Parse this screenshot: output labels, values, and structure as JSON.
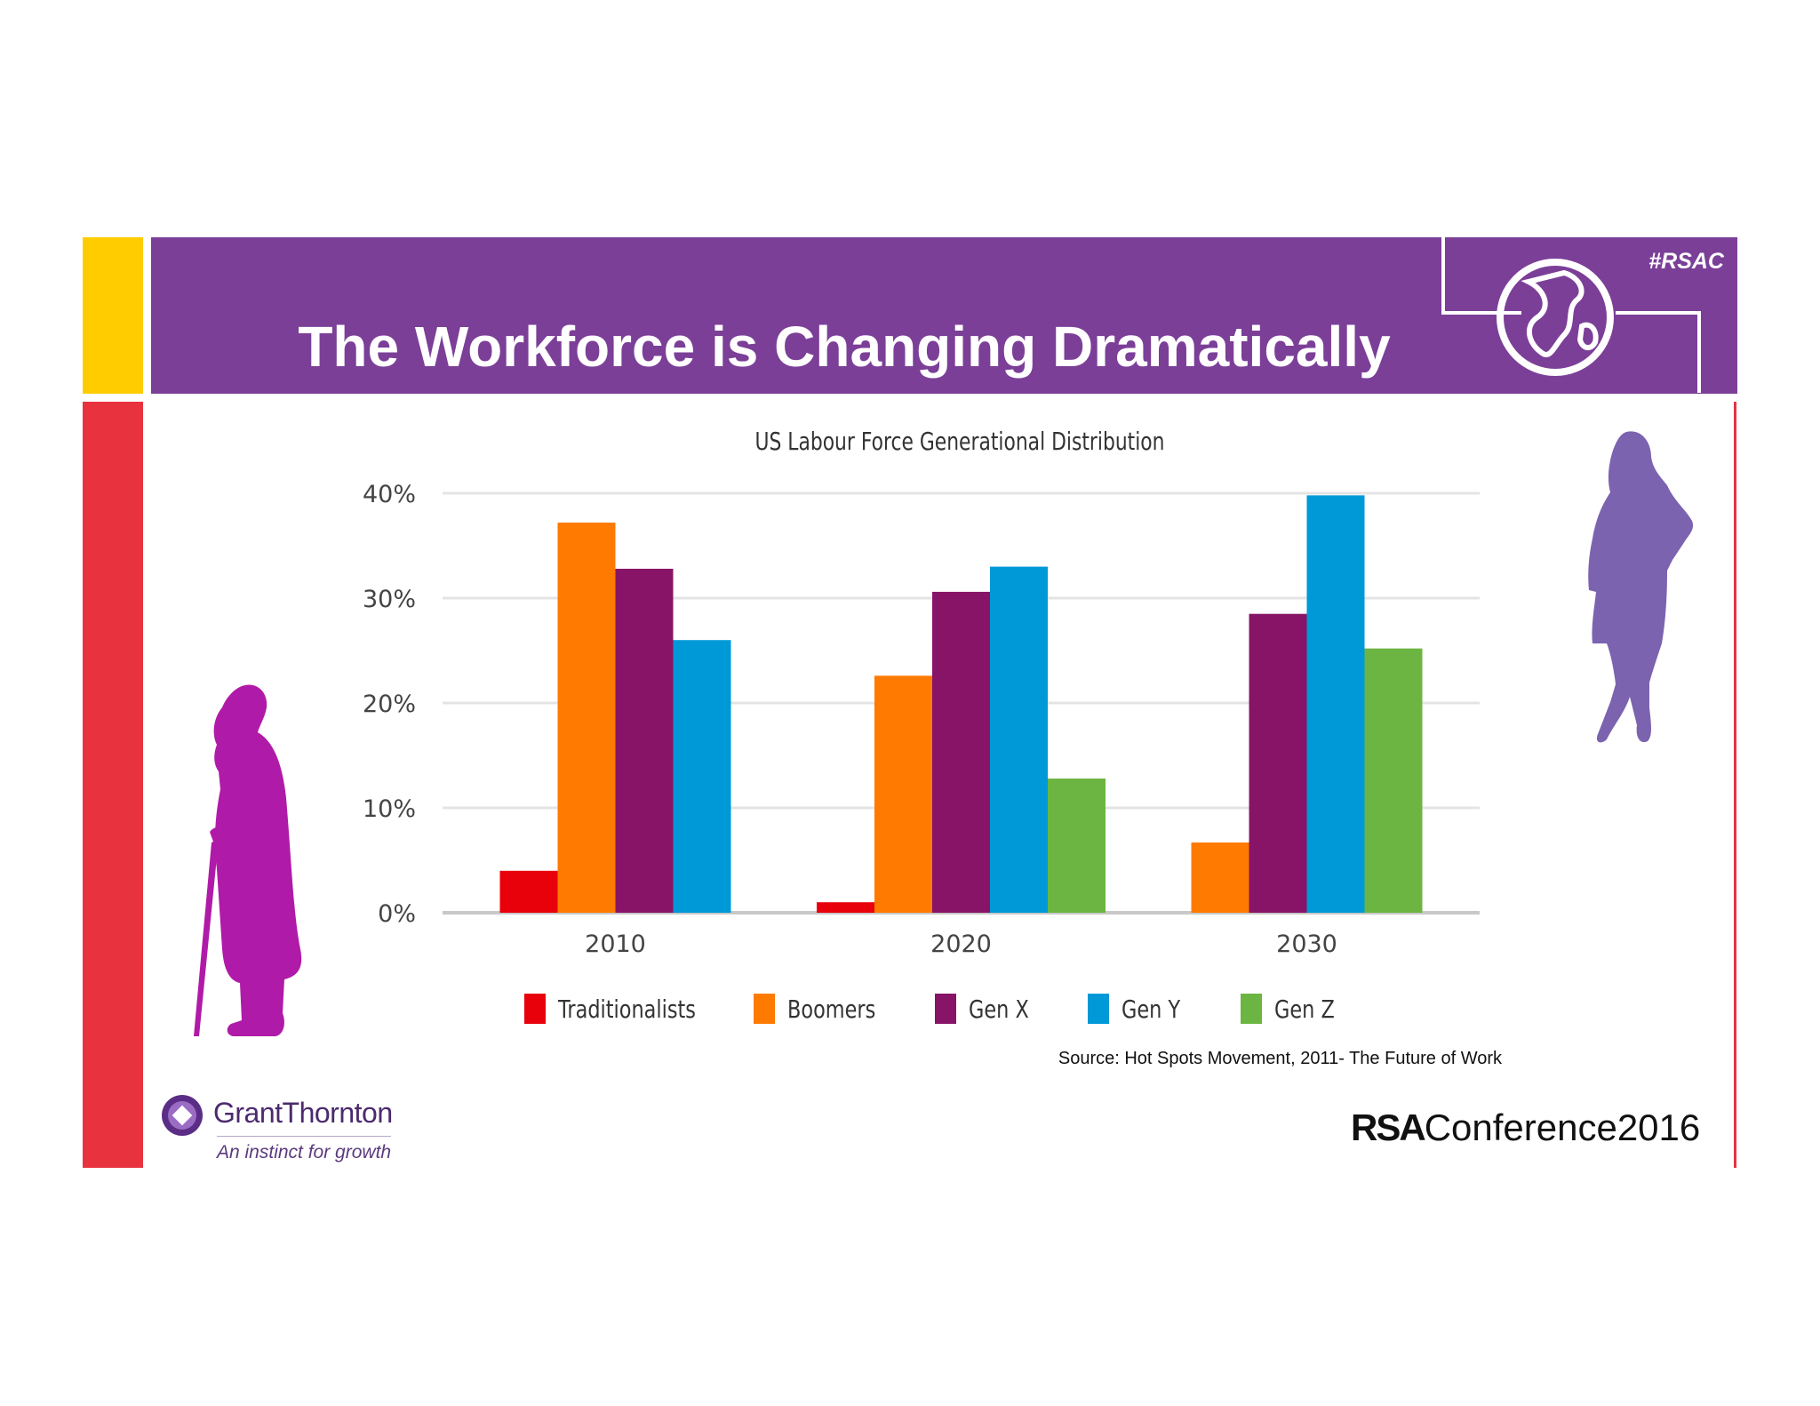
{
  "slide": {
    "title": "The Workforce is Changing Dramatically",
    "hashtag": "#RSAC",
    "source": "Source: Hot Spots Movement, 2011- The Future of Work"
  },
  "colors": {
    "purple_band": "#7b3f98",
    "yellow": "#ffcc00",
    "red": "#e8333f",
    "old_man": "#b01aa8",
    "woman": "#7b63b0"
  },
  "icons": {
    "globe": "globe-icon",
    "old_man": "elderly-man-silhouette",
    "woman": "young-woman-silhouette",
    "gt_mark": "grant-thornton-mark"
  },
  "logos": {
    "grant_thornton": {
      "name": "GrantThornton",
      "tagline": "An instinct for growth"
    },
    "rsa": {
      "bold": "RSA",
      "rest": "Conference2016"
    }
  },
  "chart_data": {
    "type": "bar",
    "title": "US Labour Force Generational Distribution",
    "xlabel": "",
    "ylabel": "",
    "ylim": [
      0,
      40
    ],
    "yticks": [
      "0%",
      "10%",
      "20%",
      "30%",
      "40%"
    ],
    "grid": true,
    "legend_position": "bottom",
    "categories": [
      "2010",
      "2020",
      "2030"
    ],
    "series": [
      {
        "name": "Traditionalists",
        "color": "#e8000b",
        "values": [
          4,
          1,
          0
        ]
      },
      {
        "name": "Boomers",
        "color": "#ff7a00",
        "values": [
          37.2,
          22.6,
          6.7
        ]
      },
      {
        "name": "Gen X",
        "color": "#871466",
        "values": [
          32.8,
          30.6,
          28.5
        ]
      },
      {
        "name": "Gen Y",
        "color": "#0099d8",
        "values": [
          26,
          33,
          39.8
        ]
      },
      {
        "name": "Gen Z",
        "color": "#6db542",
        "values": [
          0,
          12.8,
          25.2
        ]
      }
    ]
  }
}
